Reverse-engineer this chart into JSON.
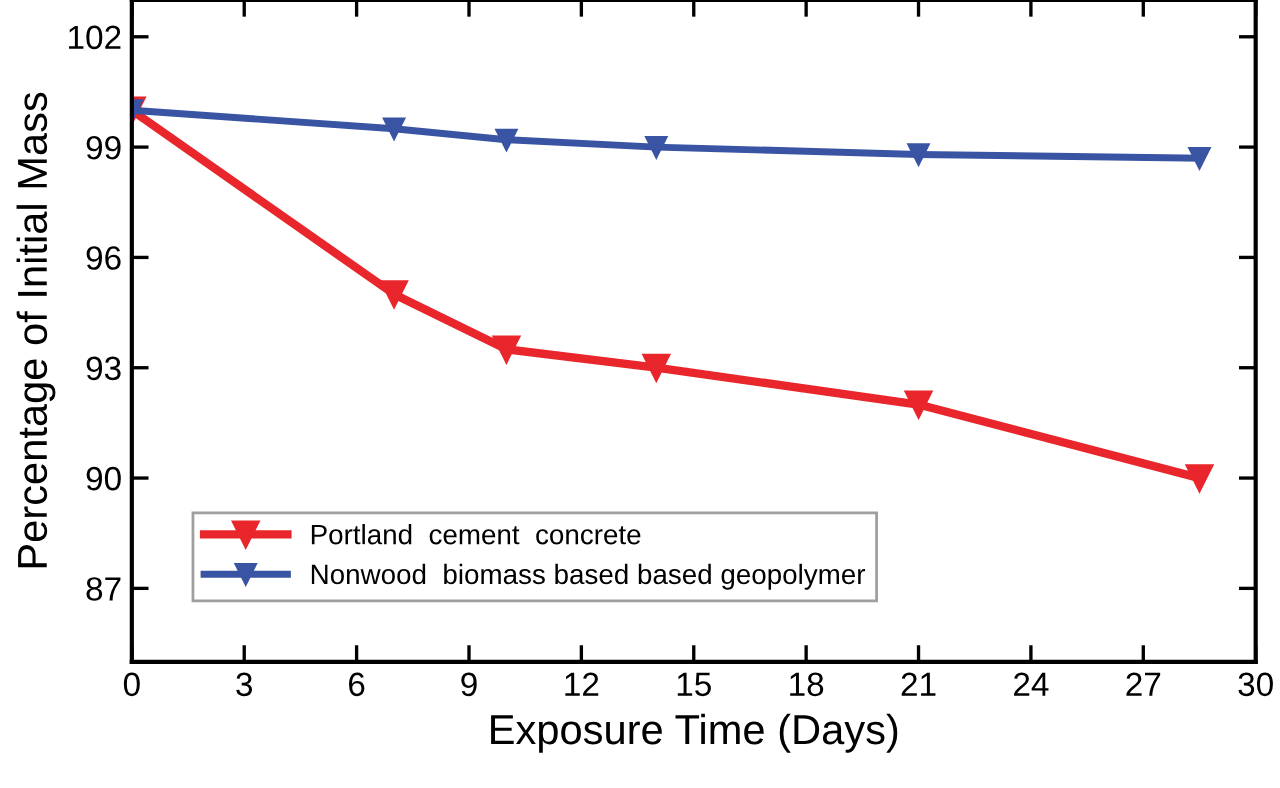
{
  "chart_data": {
    "type": "line",
    "xlabel": "Exposure Time (Days)",
    "ylabel": "Percentage of Initial Mass",
    "x": [
      0,
      7,
      10,
      14,
      21,
      28.5
    ],
    "series": [
      {
        "name": "Portland  cement  concrete",
        "color": "#e8262b",
        "values": [
          100,
          95,
          93.5,
          93,
          92,
          90
        ]
      },
      {
        "name": "Nonwood  biomass based based geopolymer",
        "color": "#3a54a4",
        "values": [
          100,
          99.5,
          99.2,
          99,
          98.8,
          98.7
        ]
      }
    ],
    "xlim": [
      0,
      30
    ],
    "xticks": [
      0,
      3,
      6,
      9,
      12,
      15,
      18,
      21,
      24,
      27,
      30
    ],
    "ylim": [
      85,
      103
    ],
    "yticks": [
      87,
      90,
      93,
      96,
      99,
      102
    ],
    "marker": "triangle",
    "line_style": "solid",
    "grid": false,
    "legend": "bottom left"
  }
}
